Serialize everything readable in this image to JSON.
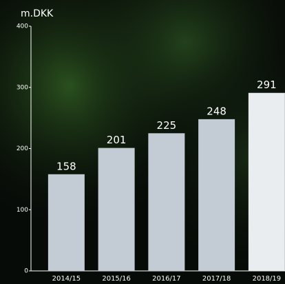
{
  "chart_data": {
    "type": "bar",
    "y_label": "m.DKK",
    "categories": [
      "2014/15",
      "2015/16",
      "2016/17",
      "2017/18",
      "2018/19"
    ],
    "values": [
      158,
      201,
      225,
      248,
      291
    ],
    "colors": [
      "#c3ccd4",
      "#c3ccd4",
      "#c3ccd4",
      "#c3ccd4",
      "#e9edf0"
    ],
    "ylim": [
      0,
      400
    ],
    "yticks": [
      0,
      100,
      200,
      300,
      400
    ]
  }
}
